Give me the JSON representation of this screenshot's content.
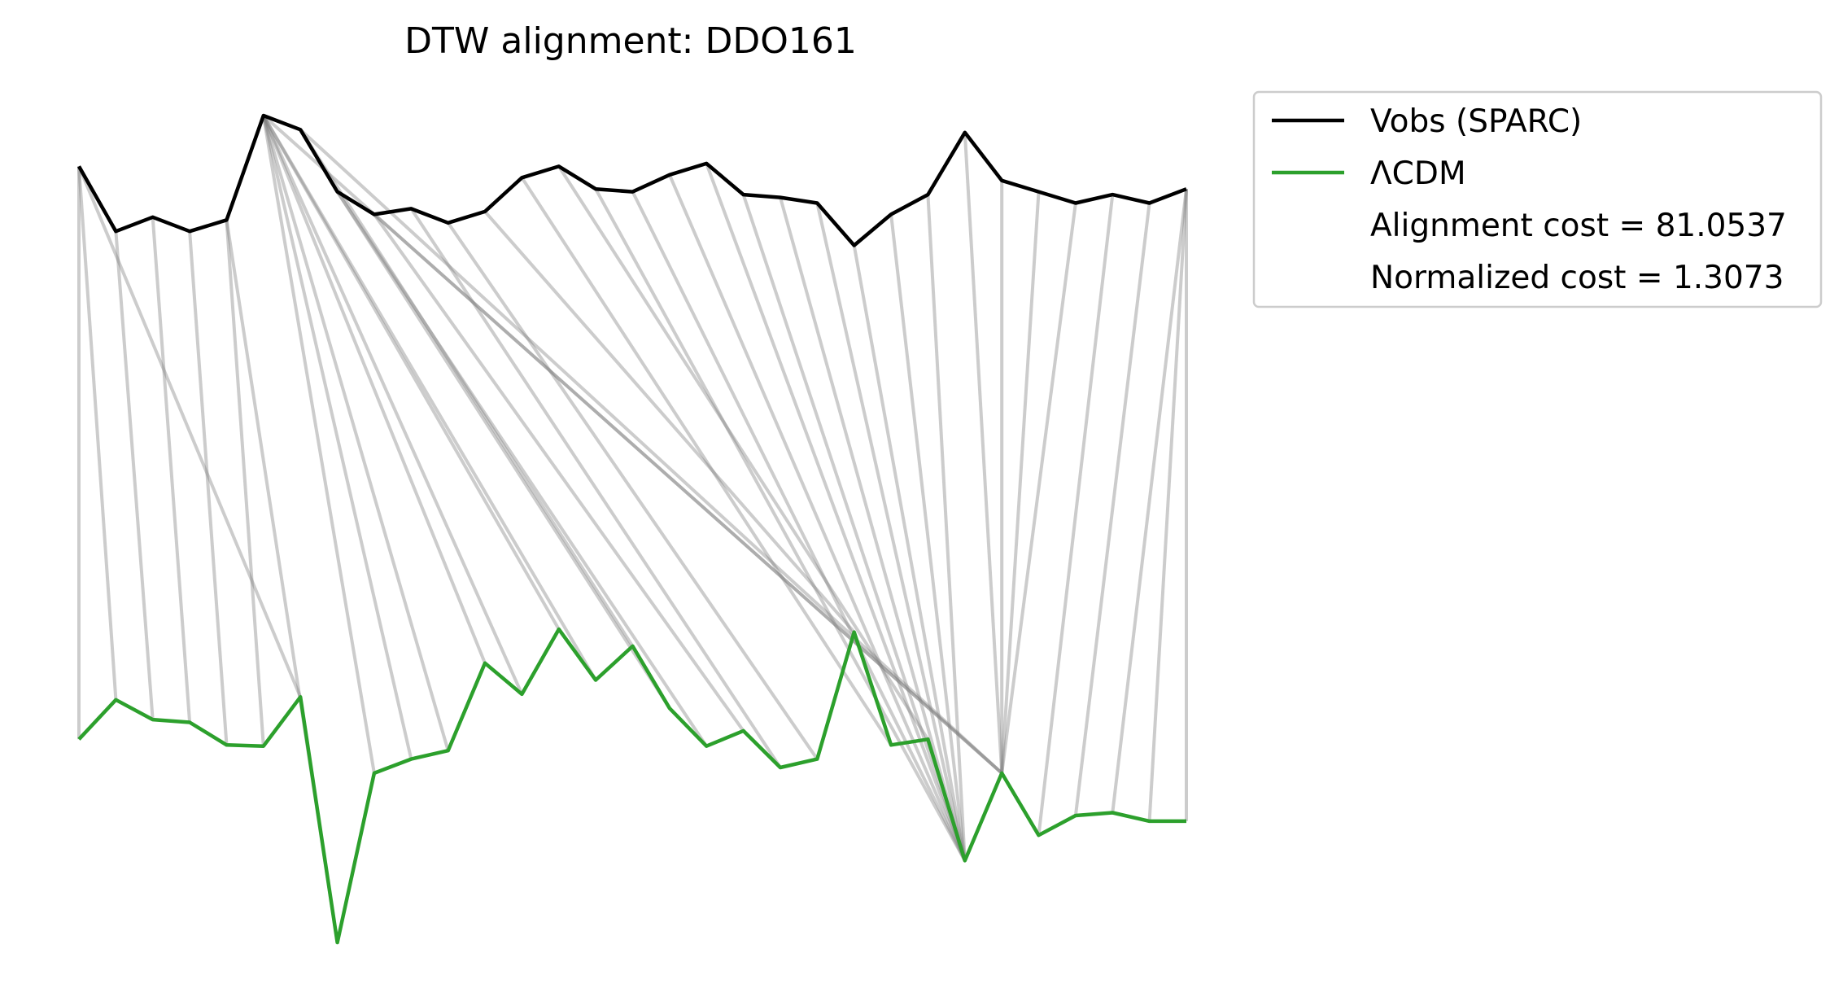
{
  "chart_data": {
    "type": "line",
    "title": "DTW alignment: DDO161",
    "xlabel": "",
    "ylabel": "",
    "axes_visible": false,
    "legend_position": "upper-right-outside",
    "x": [
      0,
      1,
      2,
      3,
      4,
      5,
      6,
      7,
      8,
      9,
      10,
      11,
      12,
      13,
      14,
      15,
      16,
      17,
      18,
      19,
      20,
      21,
      22,
      23,
      24,
      25,
      26,
      27,
      28,
      29,
      30
    ],
    "series": [
      {
        "name": "Vobs (SPARC)",
        "color": "#000000",
        "values": [
          0.86,
          0.745,
          0.77,
          0.745,
          0.765,
          0.95,
          0.925,
          0.815,
          0.775,
          0.785,
          0.76,
          0.78,
          0.84,
          0.86,
          0.82,
          0.815,
          0.845,
          0.865,
          0.81,
          0.805,
          0.795,
          0.72,
          0.775,
          0.81,
          0.92,
          0.835,
          0.815,
          0.795,
          0.81,
          0.795,
          0.82
        ]
      },
      {
        "name": "ΛCDM",
        "color": "#2ca02c",
        "values": [
          -0.155,
          -0.085,
          -0.12,
          -0.125,
          -0.165,
          -0.167,
          -0.08,
          -0.515,
          -0.215,
          -0.19,
          -0.175,
          -0.02,
          -0.075,
          0.04,
          -0.05,
          0.01,
          -0.1,
          -0.167,
          -0.14,
          -0.205,
          -0.19,
          0.035,
          -0.165,
          -0.155,
          -0.37,
          -0.215,
          -0.325,
          -0.29,
          -0.285,
          -0.3,
          -0.3
        ]
      }
    ],
    "alignment_color": "#808080",
    "alignment_pairs": [
      [
        0,
        0
      ],
      [
        0,
        1
      ],
      [
        1,
        2
      ],
      [
        2,
        3
      ],
      [
        3,
        4
      ],
      [
        4,
        5
      ],
      [
        0,
        6
      ],
      [
        4,
        7
      ],
      [
        5,
        8
      ],
      [
        5,
        9
      ],
      [
        5,
        10
      ],
      [
        5,
        11
      ],
      [
        5,
        12
      ],
      [
        5,
        13
      ],
      [
        5,
        14
      ],
      [
        6,
        15
      ],
      [
        7,
        16
      ],
      [
        7,
        17
      ],
      [
        8,
        18
      ],
      [
        9,
        19
      ],
      [
        10,
        20
      ],
      [
        11,
        21
      ],
      [
        12,
        22
      ],
      [
        13,
        23
      ],
      [
        14,
        24
      ],
      [
        15,
        24
      ],
      [
        16,
        24
      ],
      [
        17,
        24
      ],
      [
        18,
        24
      ],
      [
        19,
        24
      ],
      [
        20,
        24
      ],
      [
        21,
        24
      ],
      [
        22,
        24
      ],
      [
        23,
        24
      ],
      [
        5,
        25
      ],
      [
        6,
        25
      ],
      [
        8,
        25
      ],
      [
        24,
        25
      ],
      [
        25,
        25
      ],
      [
        26,
        25
      ],
      [
        27,
        25
      ],
      [
        28,
        26
      ],
      [
        29,
        27
      ],
      [
        30,
        28
      ],
      [
        30,
        29
      ],
      [
        30,
        30
      ]
    ],
    "annotations": [
      "Alignment cost = 81.0537",
      "Normalized cost = 1.3073"
    ]
  }
}
